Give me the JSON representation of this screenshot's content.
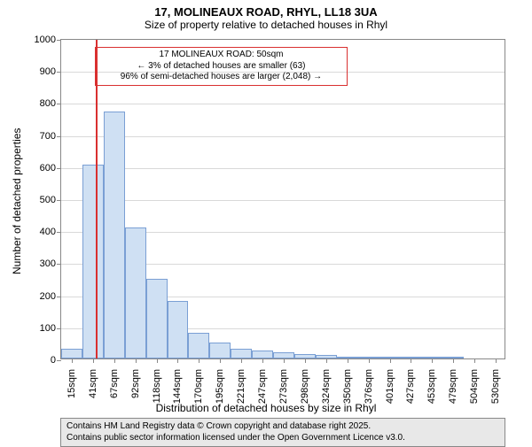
{
  "title": {
    "line1": "17, MOLINEAUX ROAD, RHYL, LL18 3UA",
    "line2": "Size of property relative to detached houses in Rhyl"
  },
  "chart": {
    "type": "histogram",
    "background_color": "#ffffff",
    "grid_color": "#d9d9d9",
    "border_color": "#888888",
    "bar_fill": "#cfe0f3",
    "bar_stroke": "#7a9fd4",
    "marker_color": "#d93030",
    "marker_x_index": 1.15,
    "annotation": {
      "border_color": "#d93030",
      "line1": "17 MOLINEAUX ROAD: 50sqm",
      "line2": "← 3% of detached houses are smaller (63)",
      "line3": "96% of semi-detached houses are larger (2,048) →",
      "left_index": 1.6,
      "right_index": 13.5
    },
    "y_axis": {
      "title": "Number of detached properties",
      "min": 0,
      "max": 1000,
      "step": 100,
      "title_fontsize": 12,
      "tick_fontsize": 11
    },
    "x_axis": {
      "title": "Distribution of detached houses by size in Rhyl",
      "labels": [
        "15sqm",
        "41sqm",
        "67sqm",
        "92sqm",
        "118sqm",
        "144sqm",
        "170sqm",
        "195sqm",
        "221sqm",
        "247sqm",
        "273sqm",
        "298sqm",
        "324sqm",
        "350sqm",
        "376sqm",
        "401sqm",
        "427sqm",
        "453sqm",
        "479sqm",
        "504sqm",
        "530sqm"
      ],
      "title_fontsize": 12,
      "tick_fontsize": 11
    },
    "bars": [
      30,
      605,
      770,
      410,
      250,
      180,
      80,
      50,
      30,
      25,
      18,
      15,
      10,
      6,
      4,
      3,
      2,
      1,
      1,
      0,
      0
    ]
  },
  "footer": {
    "background_color": "#e8e8e8",
    "line1": "Contains HM Land Registry data © Crown copyright and database right 2025.",
    "line2": "Contains public sector information licensed under the Open Government Licence v3.0."
  }
}
